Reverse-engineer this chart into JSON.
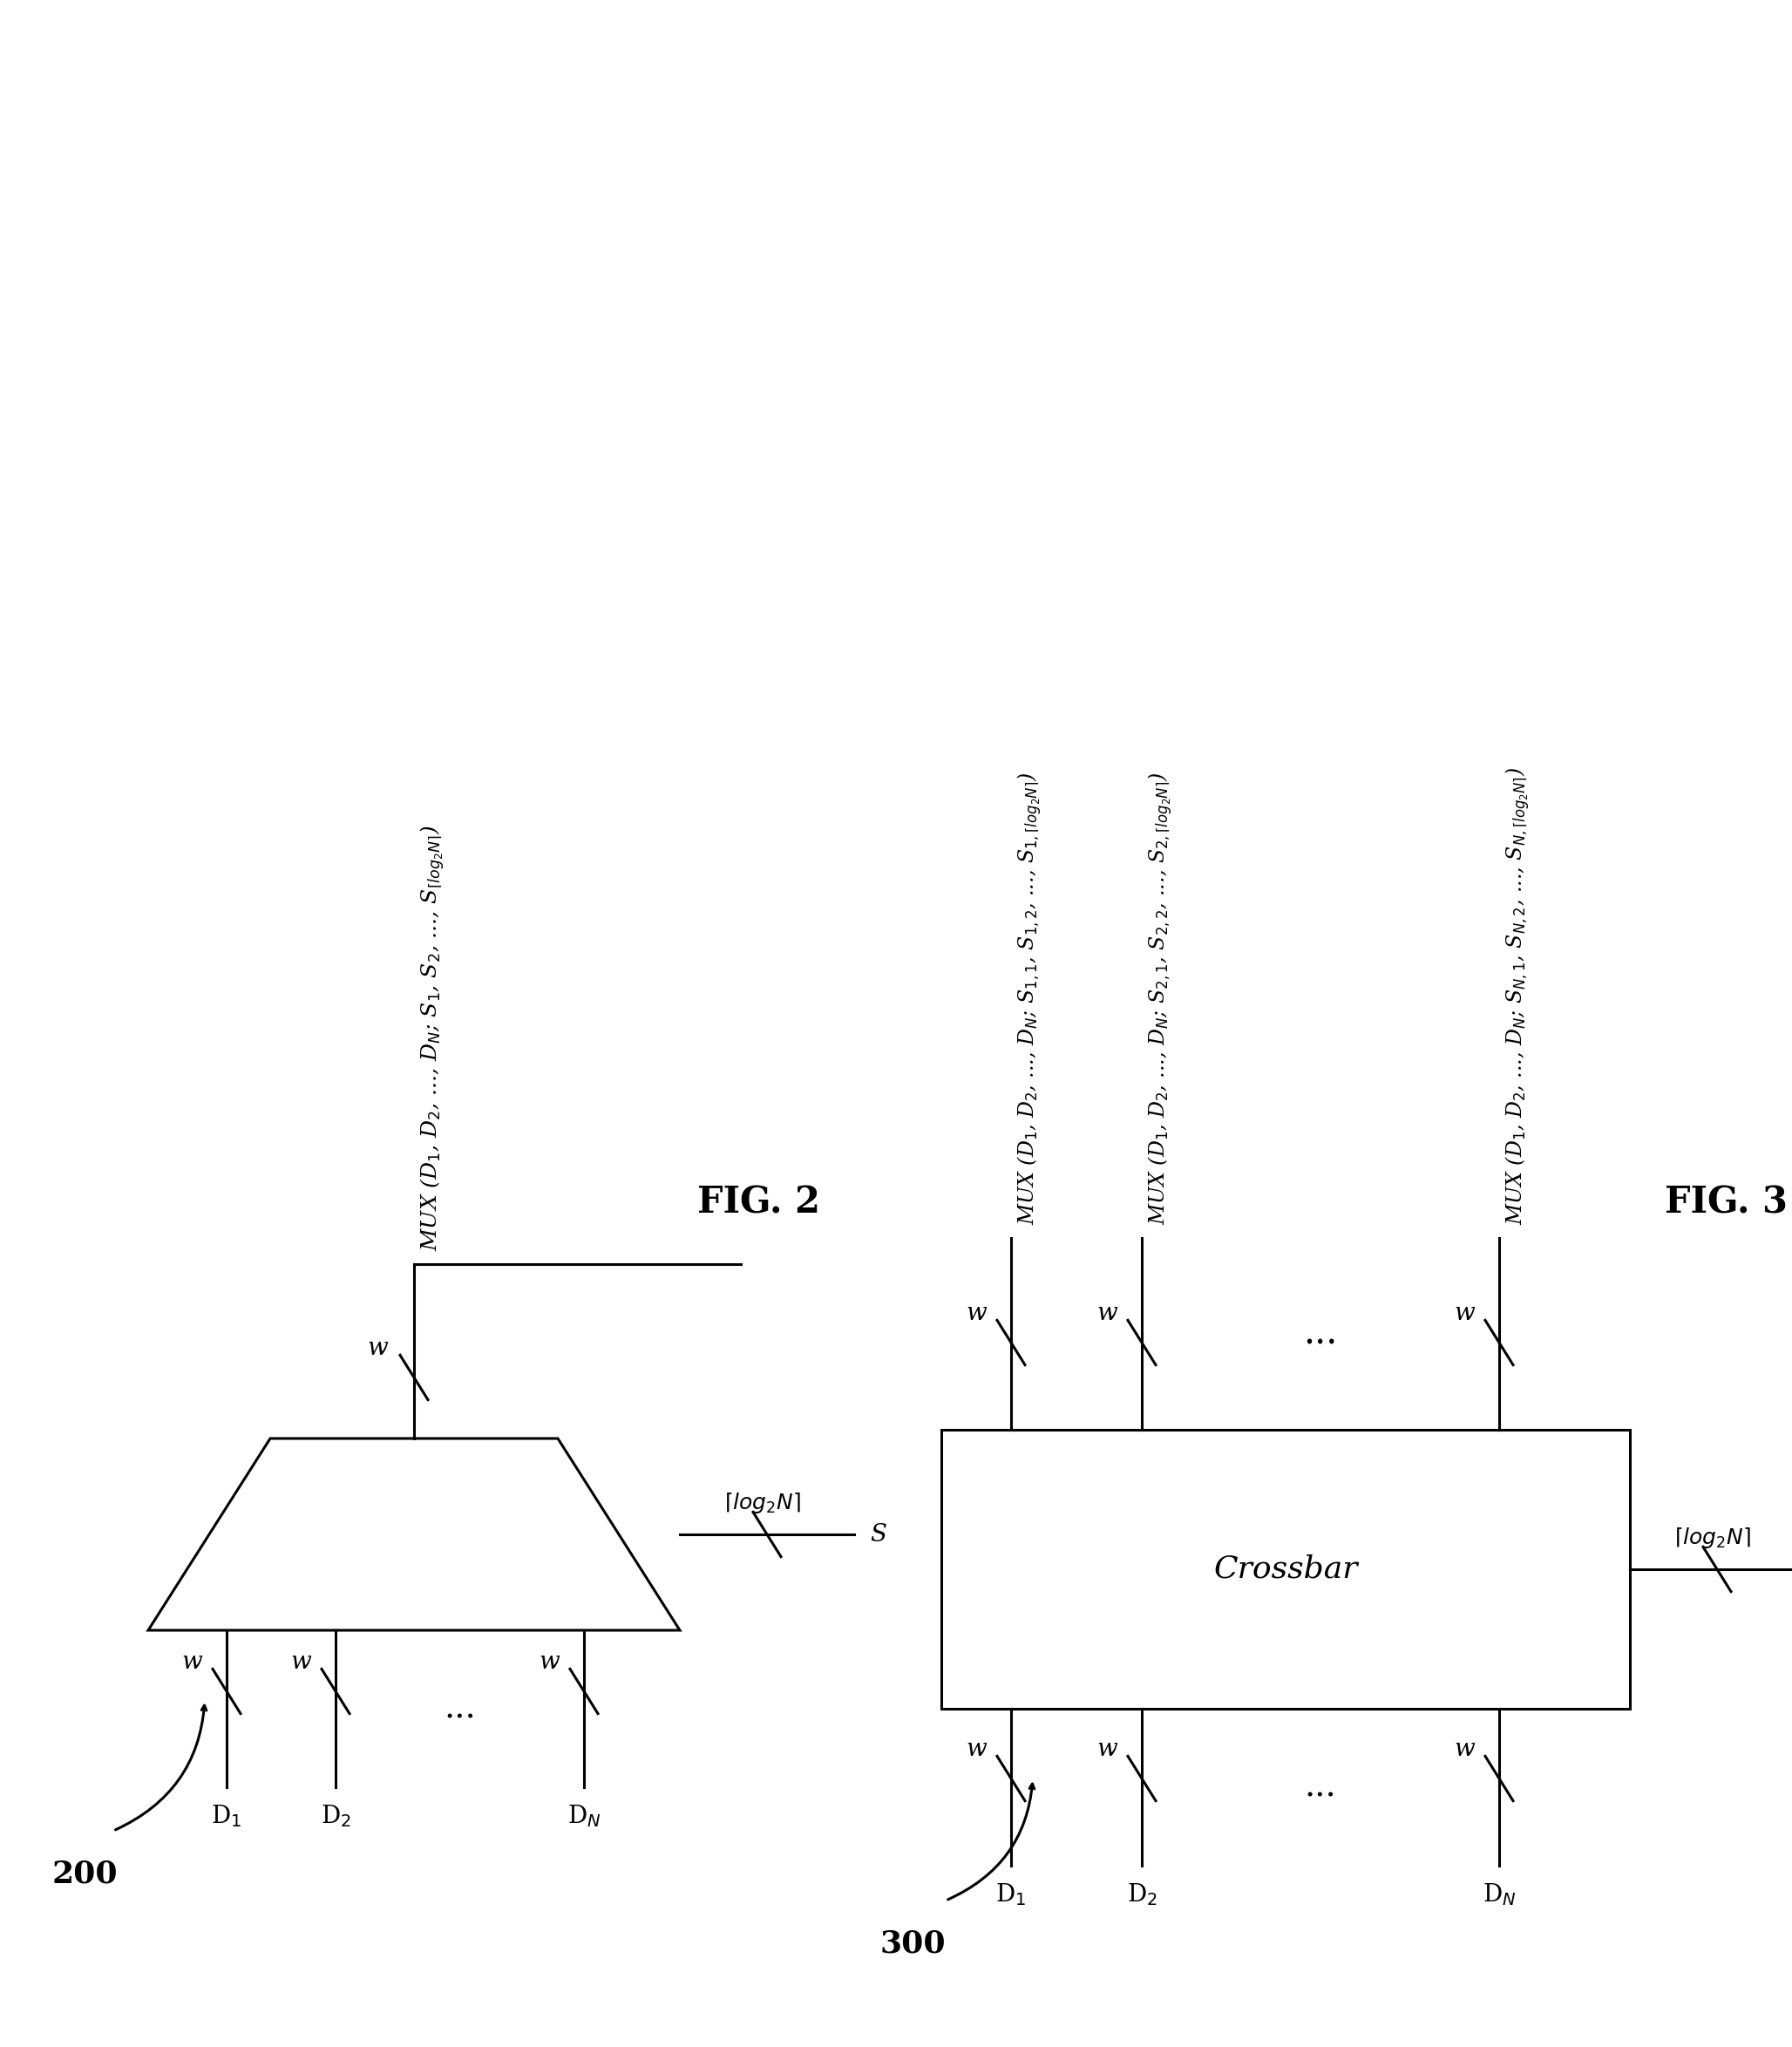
{
  "bg": "#ffffff",
  "fig_w": 20.56,
  "fig_h": 23.48,
  "lw": 2.2,
  "fig2_label": "FIG. 2",
  "fig3_label": "FIG. 3",
  "ref200": "200",
  "ref300": "300",
  "crossbar_text": "Crossbar",
  "S_text": "S",
  "w_text": "w"
}
